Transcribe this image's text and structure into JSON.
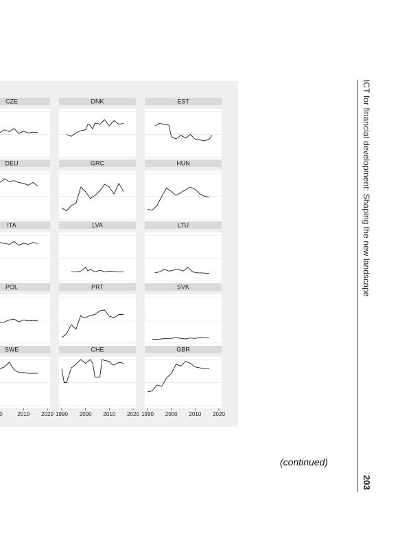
{
  "running_head": {
    "title": "ICT for financial development: Shaping the new landscape",
    "page_number": "203"
  },
  "continued_label": "(continued)",
  "colors": {
    "panel_background": "#efefef",
    "strip_background": "#d9d9d9",
    "plot_background": "#ffffff",
    "gridline": "#e4e4e4",
    "series_line": "#1a1a1a"
  },
  "chart_data": {
    "type": "line",
    "layout": "small-multiples",
    "x_ticks_full": [
      "1990",
      "2000",
      "2010",
      "2020"
    ],
    "x_ticks_cropped_column": [
      "00",
      "2010",
      "2020"
    ],
    "xlim": [
      1990,
      2020
    ],
    "ylim": [
      0,
      1
    ],
    "grid": true,
    "panels": [
      {
        "name": "CZE",
        "x": [
          1990,
          1992,
          1994,
          1996,
          1998,
          2000,
          2002,
          2004,
          2006,
          2008,
          2010,
          2012,
          2014,
          2016
        ],
        "y": [
          0.52,
          0.48,
          0.55,
          0.5,
          0.58,
          0.54,
          0.6,
          0.56,
          0.63,
          0.52,
          0.57,
          0.53,
          0.55,
          0.54
        ]
      },
      {
        "name": "DNK",
        "x": [
          1992,
          1994,
          1996,
          1998,
          2000,
          2001,
          2002,
          2003,
          2004,
          2006,
          2008,
          2010,
          2011,
          2012,
          2014,
          2016
        ],
        "y": [
          0.5,
          0.46,
          0.53,
          0.58,
          0.6,
          0.72,
          0.7,
          0.62,
          0.75,
          0.72,
          0.82,
          0.68,
          0.75,
          0.8,
          0.72,
          0.74
        ]
      },
      {
        "name": "EST",
        "x": [
          1993,
          1995,
          1997,
          1999,
          2000,
          2002,
          2004,
          2006,
          2008,
          2010,
          2012,
          2014,
          2016,
          2017
        ],
        "y": [
          0.68,
          0.74,
          0.72,
          0.7,
          0.45,
          0.4,
          0.48,
          0.42,
          0.5,
          0.4,
          0.38,
          0.36,
          0.4,
          0.48
        ]
      },
      {
        "name": "DEU",
        "x": [
          1990,
          1992,
          1994,
          1996,
          1998,
          2000,
          2002,
          2004,
          2006,
          2008,
          2010,
          2012,
          2014,
          2016
        ],
        "y": [
          0.8,
          0.78,
          0.82,
          0.8,
          0.84,
          0.8,
          0.88,
          0.82,
          0.84,
          0.8,
          0.78,
          0.74,
          0.8,
          0.72
        ]
      },
      {
        "name": "GRC",
        "x": [
          1990,
          1992,
          1994,
          1996,
          1998,
          2000,
          2002,
          2004,
          2006,
          2008,
          2010,
          2012,
          2014,
          2016
        ],
        "y": [
          0.25,
          0.18,
          0.3,
          0.35,
          0.7,
          0.6,
          0.45,
          0.52,
          0.62,
          0.76,
          0.7,
          0.55,
          0.78,
          0.6
        ]
      },
      {
        "name": "HUN",
        "x": [
          1990,
          1992,
          1994,
          1996,
          1998,
          2000,
          2002,
          2004,
          2006,
          2008,
          2010,
          2012,
          2014,
          2016
        ],
        "y": [
          0.22,
          0.2,
          0.3,
          0.5,
          0.68,
          0.6,
          0.52,
          0.58,
          0.64,
          0.7,
          0.65,
          0.55,
          0.5,
          0.48
        ]
      },
      {
        "name": "ITA",
        "x": [
          1990,
          1992,
          1994,
          1996,
          1998,
          2000,
          2002,
          2004,
          2006,
          2008,
          2010,
          2012,
          2014,
          2016
        ],
        "y": [
          0.78,
          0.8,
          0.76,
          0.82,
          0.8,
          0.84,
          0.82,
          0.8,
          0.86,
          0.78,
          0.82,
          0.8,
          0.84,
          0.82
        ]
      },
      {
        "name": "LVA",
        "x": [
          1994,
          1996,
          1998,
          2000,
          2001,
          2002,
          2004,
          2006,
          2008,
          2010,
          2012,
          2014,
          2016
        ],
        "y": [
          0.2,
          0.2,
          0.22,
          0.3,
          0.22,
          0.26,
          0.2,
          0.24,
          0.2,
          0.22,
          0.21,
          0.2,
          0.2
        ]
      },
      {
        "name": "LTU",
        "x": [
          1993,
          1995,
          1997,
          1999,
          2001,
          2003,
          2005,
          2007,
          2009,
          2011,
          2013,
          2015,
          2016
        ],
        "y": [
          0.18,
          0.2,
          0.26,
          0.22,
          0.24,
          0.26,
          0.22,
          0.3,
          0.2,
          0.18,
          0.18,
          0.17,
          0.17
        ]
      },
      {
        "name": "POL",
        "x": [
          1990,
          1992,
          1994,
          1996,
          1998,
          2000,
          2002,
          2004,
          2006,
          2008,
          2010,
          2012,
          2014,
          2016
        ],
        "y": [
          0.5,
          0.4,
          0.3,
          0.42,
          0.48,
          0.44,
          0.46,
          0.5,
          0.52,
          0.46,
          0.5,
          0.48,
          0.49,
          0.48
        ]
      },
      {
        "name": "PRT",
        "x": [
          1990,
          1992,
          1994,
          1996,
          1998,
          1999,
          2000,
          2002,
          2004,
          2006,
          2008,
          2010,
          2012,
          2014,
          2016
        ],
        "y": [
          0.12,
          0.2,
          0.4,
          0.3,
          0.6,
          0.55,
          0.55,
          0.6,
          0.62,
          0.7,
          0.72,
          0.58,
          0.55,
          0.62,
          0.62
        ]
      },
      {
        "name": "SVK",
        "x": [
          1992,
          1994,
          1996,
          1998,
          2000,
          2002,
          2004,
          2006,
          2008,
          2010,
          2012,
          2014,
          2016
        ],
        "y": [
          0.08,
          0.08,
          0.09,
          0.1,
          0.1,
          0.12,
          0.1,
          0.09,
          0.11,
          0.1,
          0.12,
          0.11,
          0.11
        ]
      },
      {
        "name": "SWE",
        "x": [
          1990,
          1992,
          1994,
          1996,
          1998,
          2000,
          2002,
          2004,
          2006,
          2008,
          2010,
          2012,
          2014,
          2016
        ],
        "y": [
          0.78,
          0.76,
          0.8,
          0.76,
          0.85,
          0.8,
          0.84,
          0.94,
          0.78,
          0.72,
          0.72,
          0.7,
          0.7,
          0.7
        ]
      },
      {
        "name": "CHE",
        "x": [
          1990,
          1991,
          1992,
          1994,
          1996,
          1998,
          2000,
          2002,
          2003,
          2004,
          2006,
          2007,
          2008,
          2010,
          2011,
          2012,
          2014,
          2016
        ],
        "y": [
          0.8,
          0.5,
          0.5,
          0.82,
          0.9,
          1.0,
          0.92,
          1.0,
          0.92,
          0.62,
          0.62,
          1.0,
          0.98,
          0.96,
          0.9,
          0.88,
          0.94,
          0.92
        ]
      },
      {
        "name": "GBR",
        "x": [
          1990,
          1992,
          1994,
          1996,
          1998,
          2000,
          2002,
          2004,
          2006,
          2008,
          2010,
          2012,
          2014,
          2016
        ],
        "y": [
          0.3,
          0.32,
          0.45,
          0.42,
          0.6,
          0.7,
          0.9,
          0.86,
          0.96,
          0.92,
          0.84,
          0.82,
          0.8,
          0.8
        ]
      }
    ]
  }
}
